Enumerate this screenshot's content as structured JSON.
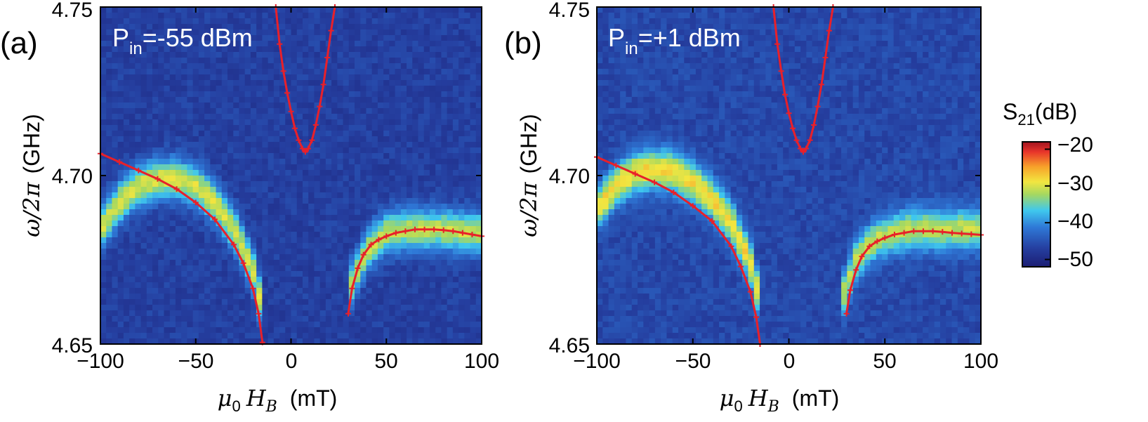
{
  "chart_data": [
    {
      "type": "heatmap",
      "panel_label": "(a)",
      "annotation": {
        "main": "P",
        "sub": "in",
        "rest": "=-55 dBm"
      },
      "x_ticks": [
        "−100",
        "−50",
        "0",
        "50",
        "100"
      ],
      "x_tick_values": [
        -100,
        -50,
        0,
        50,
        100
      ],
      "y_ticks": [
        "4.65",
        "4.70",
        "4.75"
      ],
      "y_tick_values": [
        4.65,
        4.7,
        4.75
      ],
      "xlim": [
        -100,
        100
      ],
      "ylim": [
        4.65,
        4.75
      ],
      "x_variable": "μ0 H_B",
      "xlabel": {
        "mu": "μ",
        "mu_sub": "0",
        "H": "H",
        "H_sub": "B",
        "unit": "(mT)"
      },
      "ylabel": {
        "omega": "ω/2π",
        "unit": "(GHz)"
      },
      "background_s21_dB": -47,
      "ridges": [
        {
          "x": [
            -100,
            -90,
            -80,
            -70,
            -60,
            -50,
            -40,
            -30,
            -20,
            -15
          ],
          "y": [
            4.684,
            4.692,
            4.697,
            4.699,
            4.699,
            4.697,
            4.692,
            4.684,
            4.672,
            4.66
          ],
          "peak_s21_dB": -30
        },
        {
          "x": [
            30,
            40,
            50,
            60,
            70,
            80,
            90,
            100
          ],
          "y": [
            4.666,
            4.678,
            4.683,
            4.684,
            4.684,
            4.684,
            4.683,
            4.683
          ],
          "peak_s21_dB": -31
        }
      ],
      "series": [
        {
          "name": "lower-left branch",
          "x": [
            -100,
            -90,
            -80,
            -70,
            -60,
            -50,
            -40,
            -30,
            -25,
            -20,
            -17,
            -15
          ],
          "y": [
            4.7065,
            4.704,
            4.7015,
            4.699,
            4.696,
            4.692,
            4.687,
            4.6795,
            4.674,
            4.6665,
            4.659,
            4.6505
          ]
        },
        {
          "name": "upper branch",
          "x": [
            -8,
            -6,
            -4,
            -2,
            0,
            2,
            4,
            6,
            7.5,
            9,
            11,
            13,
            15,
            17,
            19,
            21,
            23
          ],
          "y": [
            4.75,
            4.739,
            4.731,
            4.7245,
            4.719,
            4.714,
            4.7105,
            4.708,
            4.707,
            4.708,
            4.7105,
            4.715,
            4.7205,
            4.727,
            4.735,
            4.743,
            4.75
          ]
        },
        {
          "name": "lower-right branch",
          "x": [
            30,
            32,
            35,
            38,
            42,
            46,
            50,
            55,
            60,
            65,
            70,
            75,
            80,
            85,
            90,
            95,
            100
          ],
          "y": [
            4.659,
            4.6665,
            4.6725,
            4.6765,
            4.6795,
            4.681,
            4.682,
            4.683,
            4.6835,
            4.684,
            4.684,
            4.684,
            4.6838,
            4.6835,
            4.683,
            4.6825,
            4.682
          ]
        }
      ]
    },
    {
      "type": "heatmap",
      "panel_label": "(b)",
      "annotation": {
        "main": "P",
        "sub": "in",
        "rest": "=+1 dBm"
      },
      "x_ticks": [
        "−100",
        "−50",
        "0",
        "50",
        "100"
      ],
      "x_tick_values": [
        -100,
        -50,
        0,
        50,
        100
      ],
      "y_ticks": [
        "4.65",
        "4.70",
        "4.75"
      ],
      "y_tick_values": [
        4.65,
        4.7,
        4.75
      ],
      "xlim": [
        -100,
        100
      ],
      "ylim": [
        4.65,
        4.75
      ],
      "x_variable": "μ0 H_B",
      "xlabel": {
        "mu": "μ",
        "mu_sub": "0",
        "H": "H",
        "H_sub": "B",
        "unit": "(mT)"
      },
      "ylabel": {
        "omega": "ω/2π",
        "unit": "(GHz)"
      },
      "background_s21_dB": -46,
      "ridges": [
        {
          "x": [
            -100,
            -90,
            -80,
            -70,
            -60,
            -50,
            -40,
            -30,
            -20,
            -15
          ],
          "y": [
            4.69,
            4.697,
            4.701,
            4.702,
            4.701,
            4.698,
            4.693,
            4.686,
            4.674,
            4.662
          ],
          "peak_s21_dB": -28
        },
        {
          "x": [
            28,
            35,
            45,
            55,
            65,
            75,
            85,
            100
          ],
          "y": [
            4.664,
            4.675,
            4.681,
            4.683,
            4.684,
            4.684,
            4.684,
            4.684
          ],
          "peak_s21_dB": -31
        }
      ],
      "series": [
        {
          "name": "lower-left branch",
          "x": [
            -100,
            -90,
            -80,
            -70,
            -60,
            -50,
            -40,
            -30,
            -25,
            -20,
            -17,
            -15
          ],
          "y": [
            4.7055,
            4.703,
            4.7005,
            4.698,
            4.695,
            4.691,
            4.6865,
            4.679,
            4.673,
            4.6655,
            4.658,
            4.65
          ]
        },
        {
          "name": "upper branch",
          "x": [
            -8,
            -6,
            -4,
            -2,
            0,
            2,
            4,
            6,
            7.5,
            9,
            11,
            13,
            15,
            17,
            19,
            21,
            23
          ],
          "y": [
            4.75,
            4.739,
            4.731,
            4.724,
            4.7185,
            4.714,
            4.7105,
            4.708,
            4.707,
            4.708,
            4.7105,
            4.715,
            4.7205,
            4.727,
            4.735,
            4.743,
            4.75
          ]
        },
        {
          "name": "lower-right branch",
          "x": [
            30,
            32,
            35,
            38,
            42,
            46,
            50,
            55,
            60,
            65,
            70,
            75,
            80,
            85,
            90,
            95,
            100
          ],
          "y": [
            4.659,
            4.666,
            4.672,
            4.676,
            4.679,
            4.6805,
            4.6815,
            4.6825,
            4.683,
            4.6835,
            4.6835,
            4.6835,
            4.6833,
            4.683,
            4.6828,
            4.6826,
            4.6824
          ]
        }
      ]
    }
  ],
  "colorbar": {
    "title_main": "S",
    "title_sub": "21",
    "title_rest": "(dB)",
    "ticks": [
      "−20",
      "−30",
      "−40",
      "−50"
    ],
    "tick_values": [
      -20,
      -30,
      -40,
      -50
    ],
    "range": [
      -52,
      -18
    ]
  },
  "colors": {
    "fit_line": "#e8202a",
    "background": "#ffffff"
  }
}
